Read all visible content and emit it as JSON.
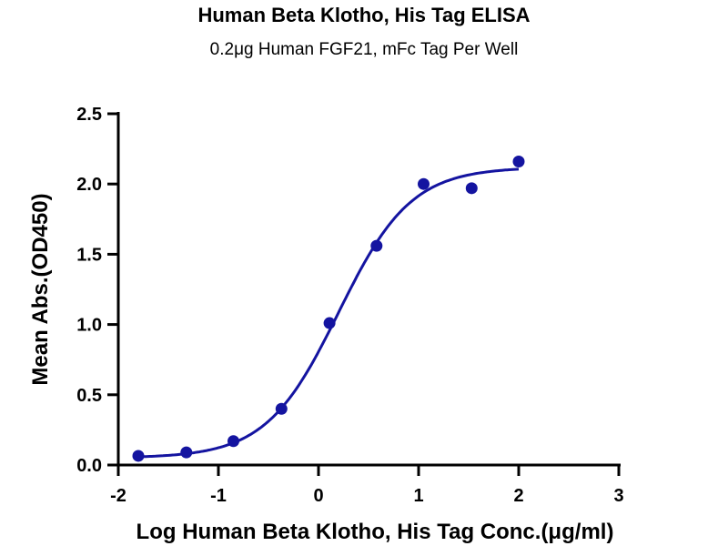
{
  "chart_data": {
    "type": "scatter",
    "title": "Human Beta Klotho, His Tag ELISA",
    "subtitle": "0.2μg Human FGF21, mFc Tag Per Well",
    "xlabel": "Log Human Beta Klotho, His Tag Conc.(μg/ml)",
    "ylabel": "Mean Abs.(OD450)",
    "xlim": [
      -2,
      3
    ],
    "ylim": [
      0,
      2.5
    ],
    "xticks": [
      "-2",
      "-1",
      "0",
      "1",
      "2",
      "3"
    ],
    "xtick_values": [
      -2,
      -1,
      0,
      1,
      2,
      3
    ],
    "yticks": [
      "0.0",
      "0.5",
      "1.0",
      "1.5",
      "2.0",
      "2.5"
    ],
    "ytick_values": [
      0,
      0.5,
      1.0,
      1.5,
      2.0,
      2.5
    ],
    "grid": false,
    "series": [
      {
        "name": "data",
        "x": [
          -1.8,
          -1.32,
          -0.85,
          -0.37,
          0.11,
          0.58,
          1.05,
          1.53,
          2.0
        ],
        "y": [
          0.065,
          0.09,
          0.17,
          0.4,
          1.01,
          1.56,
          2.0,
          1.97,
          2.16
        ]
      }
    ],
    "fit": {
      "model": "4PL",
      "bottom": 0.05,
      "top": 2.12,
      "logEC50": 0.2,
      "hill": 1.2,
      "x_range": [
        -1.8,
        2.0
      ]
    },
    "color": "#1414a0"
  }
}
